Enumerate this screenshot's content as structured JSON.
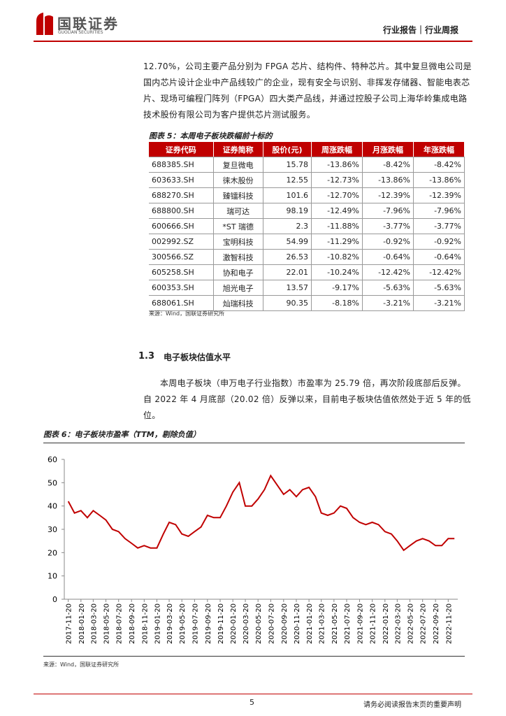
{
  "header": {
    "logo_cn": "国联证券",
    "logo_en": "GUOLIAN SECURITIES",
    "report_type": "行业报告｜行业周报"
  },
  "paragraph1": "12.70%，公司主要产品分别为 FPGA 芯片、结构件、特种芯片。其中复旦微电公司是国内芯片设计企业中产品线较广的企业，现有安全与识别、非挥发存储器、智能电表芯片、现场可编程门阵列（FPGA）四大类产品线，并通过控股子公司上海华岭集成电路技术股份有限公司为客户提供芯片测试服务。",
  "table": {
    "title": "图表 5：本周电子板块跌幅前十标的",
    "columns": [
      "证券代码",
      "证券简称",
      "股价(元)",
      "周涨跌幅",
      "月涨跌幅",
      "年涨跌幅"
    ],
    "rows": [
      [
        "688385.SH",
        "复旦微电",
        "15.78",
        "-13.86%",
        "-8.42%",
        "-8.42%"
      ],
      [
        "603633.SH",
        "徕木股份",
        "12.55",
        "-12.73%",
        "-13.86%",
        "-13.86%"
      ],
      [
        "688270.SH",
        "臻镭科技",
        "101.6",
        "-12.70%",
        "-12.39%",
        "-12.39%"
      ],
      [
        "688800.SH",
        "瑞可达",
        "98.19",
        "-12.49%",
        "-7.96%",
        "-7.96%"
      ],
      [
        "600666.SH",
        "*ST 瑞德",
        "2.3",
        "-11.88%",
        "-3.77%",
        "-3.77%"
      ],
      [
        "002992.SZ",
        "宝明科技",
        "54.99",
        "-11.29%",
        "-0.92%",
        "-0.92%"
      ],
      [
        "300566.SZ",
        "激智科技",
        "26.53",
        "-10.82%",
        "-0.64%",
        "-0.64%"
      ],
      [
        "605258.SH",
        "协和电子",
        "22.01",
        "-10.24%",
        "-12.42%",
        "-12.42%"
      ],
      [
        "600353.SH",
        "旭光电子",
        "13.57",
        "-9.17%",
        "-5.63%",
        "-5.63%"
      ],
      [
        "688061.SH",
        "灿瑞科技",
        "90.35",
        "-8.18%",
        "-3.21%",
        "-3.21%"
      ]
    ],
    "source": "来源：Wind，国联证券研究所"
  },
  "section": {
    "number": "1.3",
    "title": "电子板块估值水平"
  },
  "paragraph2": "本周电子板块（申万电子行业指数）市盈率为 25.79 倍，再次阶段底部后反弹。自 2022 年 4 月底部（20.02 倍）反弹以来，目前电子板块估值依然处于近 5 年的低位。",
  "chart_data": {
    "type": "line",
    "title": "图表 6：电子板块市盈率（TTM，剔除负值）",
    "color": "#c00000",
    "x": [
      "2017-11-20",
      "2017-12-20",
      "2018-01-20",
      "2018-02-20",
      "2018-03-20",
      "2018-04-20",
      "2018-05-20",
      "2018-06-20",
      "2018-07-20",
      "2018-08-20",
      "2018-09-20",
      "2018-10-20",
      "2018-11-20",
      "2018-12-20",
      "2019-01-20",
      "2019-02-20",
      "2019-03-20",
      "2019-04-20",
      "2019-05-20",
      "2019-06-20",
      "2019-07-20",
      "2019-08-20",
      "2019-09-20",
      "2019-10-20",
      "2019-11-20",
      "2019-12-20",
      "2020-01-20",
      "2020-02-20",
      "2020-03-20",
      "2020-04-20",
      "2020-05-20",
      "2020-06-20",
      "2020-07-20",
      "2020-08-20",
      "2020-09-20",
      "2020-10-20",
      "2020-11-20",
      "2020-12-20",
      "2021-01-20",
      "2021-02-20",
      "2021-03-20",
      "2021-04-20",
      "2021-05-20",
      "2021-06-20",
      "2021-07-20",
      "2021-08-20",
      "2021-09-20",
      "2021-10-20",
      "2021-11-20",
      "2021-12-20",
      "2022-01-20",
      "2022-02-20",
      "2022-03-20",
      "2022-04-20",
      "2022-05-20",
      "2022-06-20",
      "2022-07-20",
      "2022-08-20",
      "2022-09-20",
      "2022-10-20",
      "2022-11-20",
      "2022-12-20"
    ],
    "values": [
      42,
      37,
      38,
      35,
      38,
      36,
      34,
      30,
      29,
      26,
      24,
      22,
      23,
      22,
      22,
      28,
      33,
      32,
      28,
      27,
      29,
      31,
      36,
      35,
      35,
      40,
      46,
      50,
      40,
      40,
      43,
      47,
      53,
      49,
      45,
      47,
      44,
      47,
      48,
      44,
      37,
      36,
      37,
      40,
      39,
      35,
      33,
      32,
      33,
      32,
      29,
      28,
      25,
      21,
      23,
      25,
      26,
      25,
      23,
      23,
      26,
      26
    ],
    "xlim": [
      "2017-11-01",
      "2023-01-05"
    ],
    "xticks": [
      "2017-11-20",
      "2018-01-20",
      "2018-03-20",
      "2018-05-20",
      "2018-07-20",
      "2018-09-20",
      "2018-11-20",
      "2019-01-20",
      "2019-03-20",
      "2019-05-20",
      "2019-07-20",
      "2019-09-20",
      "2019-11-20",
      "2020-01-20",
      "2020-03-20",
      "2020-05-20",
      "2020-07-20",
      "2020-09-20",
      "2020-11-20",
      "2021-01-20",
      "2021-03-20",
      "2021-05-20",
      "2021-07-20",
      "2021-09-20",
      "2021-11-20",
      "2022-01-20",
      "2022-03-20",
      "2022-05-20",
      "2022-07-20",
      "2022-09-20",
      "2022-11-20"
    ],
    "ylim": [
      0,
      60
    ],
    "yticks": [
      0,
      10,
      20,
      30,
      40,
      50,
      60
    ],
    "source": "来源：Wind，国联证券研究所"
  },
  "footer": {
    "page": "5",
    "note": "请务必阅读报告末页的重要声明"
  }
}
